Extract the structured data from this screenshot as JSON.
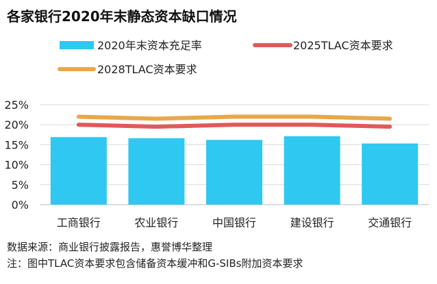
{
  "title": "各家银行2020年末静态资本缺口情况",
  "source": "数据来源：商业银行披露报告，惠誉博华整理",
  "note": "注：图中TLAC资本要求包含储备资本缓冲和G-SIBs附加资本要求",
  "chart_data": {
    "type": "bar",
    "categories": [
      "工商银行",
      "农业银行",
      "中国银行",
      "建设银行",
      "交通银行"
    ],
    "series": [
      {
        "name": "2020年末资本充足率",
        "type": "bar",
        "color": "#2ec8f0",
        "values": [
          16.9,
          16.6,
          16.2,
          17.1,
          15.3
        ]
      },
      {
        "name": "2025TLAC资本要求",
        "type": "line",
        "color": "#e05a5a",
        "values": [
          20.0,
          19.5,
          20.0,
          20.0,
          19.5
        ]
      },
      {
        "name": "2028TLAC资本要求",
        "type": "line",
        "color": "#e8a84a",
        "values": [
          22.0,
          21.5,
          22.0,
          22.0,
          21.5
        ]
      }
    ],
    "yticks": [
      "0%",
      "5%",
      "10%",
      "15%",
      "20%",
      "25%"
    ],
    "ylim": [
      0,
      25
    ],
    "grid": true,
    "legend": "top"
  }
}
